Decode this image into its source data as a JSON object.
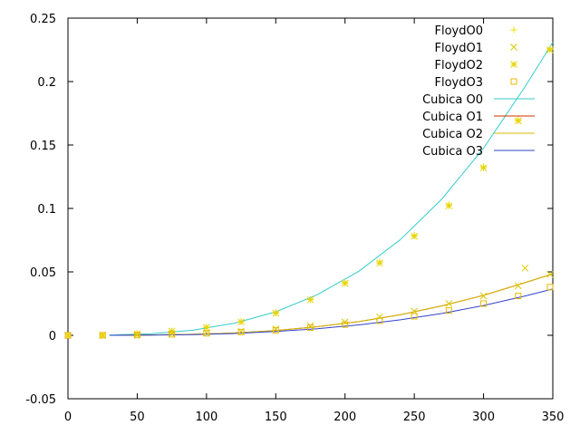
{
  "chart_data": {
    "type": "scatter",
    "title": "",
    "xlabel": "",
    "ylabel": "",
    "xlim": [
      0,
      350
    ],
    "ylim": [
      -0.05,
      0.25
    ],
    "x_ticks": [
      0,
      50,
      100,
      150,
      200,
      250,
      300,
      350
    ],
    "y_ticks": [
      -0.05,
      0,
      0.05,
      0.1,
      0.15,
      0.2,
      0.25
    ],
    "x_tick_labels": [
      "0",
      "50",
      "100",
      "150",
      "200",
      "250",
      "300",
      "350"
    ],
    "y_tick_labels": [
      "-0.05",
      "0",
      "0.05",
      "0.1",
      "0.15",
      "0.2",
      "0.25"
    ],
    "grid": false,
    "legend_position": "top-right",
    "series": [
      {
        "name": "FloydO0",
        "kind": "points",
        "marker": "plus",
        "color": "#f0e000",
        "x": [
          0,
          25,
          50,
          75,
          100,
          125,
          150,
          175,
          200,
          225,
          250,
          275,
          300,
          325,
          348
        ],
        "y": [
          0,
          0.0001,
          0.0015,
          0.0035,
          0.0065,
          0.011,
          0.018,
          0.0285,
          0.042,
          0.058,
          0.079,
          0.103,
          0.133,
          0.17,
          0.226
        ]
      },
      {
        "name": "FloydO1",
        "kind": "points",
        "marker": "x",
        "color": "#d8c800",
        "x": [
          0,
          25,
          50,
          75,
          100,
          125,
          150,
          175,
          200,
          225,
          250,
          275,
          300,
          325,
          330,
          348
        ],
        "y": [
          0,
          0,
          0.0002,
          0.001,
          0.002,
          0.003,
          0.005,
          0.0075,
          0.0105,
          0.0145,
          0.019,
          0.025,
          0.031,
          0.039,
          0.053,
          0.048
        ]
      },
      {
        "name": "FloydO2",
        "kind": "points",
        "marker": "star",
        "color": "#e6d200",
        "x": [
          0,
          25,
          50,
          75,
          100,
          125,
          150,
          175,
          200,
          225,
          250,
          275,
          300,
          325,
          348
        ],
        "y": [
          0,
          0.0001,
          0.0013,
          0.0032,
          0.0062,
          0.0105,
          0.0175,
          0.028,
          0.041,
          0.057,
          0.078,
          0.102,
          0.132,
          0.169,
          0.225
        ]
      },
      {
        "name": "FloydO3",
        "kind": "points",
        "marker": "square",
        "color": "#e8b800",
        "x": [
          0,
          25,
          50,
          75,
          100,
          125,
          150,
          175,
          200,
          225,
          250,
          275,
          300,
          325,
          348
        ],
        "y": [
          0,
          0,
          0.0002,
          0.0008,
          0.0016,
          0.0026,
          0.004,
          0.006,
          0.0085,
          0.0115,
          0.015,
          0.0195,
          0.025,
          0.031,
          0.038
        ]
      },
      {
        "name": "Cubica O0",
        "kind": "line",
        "color": "#33cccc",
        "x": [
          30,
          60,
          90,
          120,
          150,
          180,
          210,
          240,
          270,
          300,
          330,
          350
        ],
        "y": [
          0.0002,
          0.0012,
          0.004,
          0.0095,
          0.0185,
          0.032,
          0.0505,
          0.0755,
          0.1075,
          0.1475,
          0.196,
          0.231
        ]
      },
      {
        "name": "Cubica O1",
        "kind": "line",
        "color": "#cc3300",
        "x": [
          30,
          60,
          90,
          120,
          150,
          180,
          210,
          240,
          270,
          300,
          330,
          350
        ],
        "y": [
          0,
          0.0003,
          0.0008,
          0.0018,
          0.0038,
          0.0068,
          0.0108,
          0.0162,
          0.0232,
          0.0315,
          0.0415,
          0.0485
        ]
      },
      {
        "name": "Cubica O2",
        "kind": "line",
        "color": "#d4b800",
        "x": [
          30,
          60,
          90,
          120,
          150,
          180,
          210,
          240,
          270,
          300,
          330,
          350
        ],
        "y": [
          0,
          0.0003,
          0.0008,
          0.0018,
          0.0038,
          0.0068,
          0.0108,
          0.0162,
          0.0232,
          0.0315,
          0.0415,
          0.0485
        ]
      },
      {
        "name": "Cubica O3",
        "kind": "line",
        "color": "#3344cc",
        "x": [
          30,
          60,
          90,
          120,
          150,
          180,
          210,
          240,
          270,
          300,
          330,
          350
        ],
        "y": [
          0,
          0.0002,
          0.0006,
          0.0014,
          0.003,
          0.0052,
          0.0082,
          0.0122,
          0.0172,
          0.0235,
          0.031,
          0.0365
        ]
      }
    ]
  }
}
